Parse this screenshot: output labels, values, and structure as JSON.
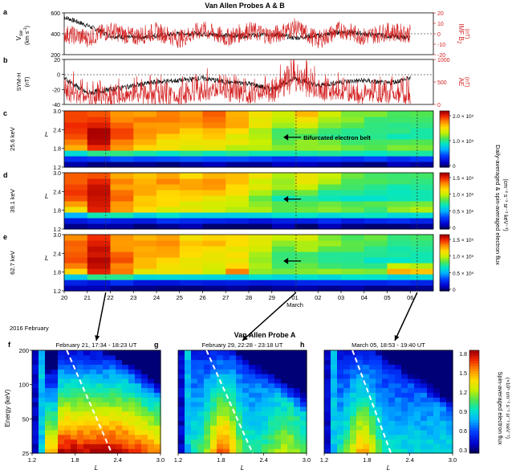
{
  "figure": {
    "title_top": "Van Allen Probes A & B",
    "title_bottom": "Van Allen Probe A",
    "x_date_ticks": [
      "20",
      "21",
      "22",
      "23",
      "24",
      "25",
      "26",
      "27",
      "28",
      "29",
      "01",
      "02",
      "03",
      "04",
      "05",
      "06"
    ],
    "x_date_sub_left": "2016 February",
    "x_date_sub_march": "March"
  },
  "panel_a": {
    "letter": "a",
    "left_label_1": "V",
    "left_label_sub": "sw",
    "left_label_2": "(km s",
    "left_label_sup": "-1",
    "left_label_3": ")",
    "left_ticks": [
      "600",
      "400",
      "200"
    ],
    "right_label_1": "IMF B",
    "right_label_sub": "Z",
    "right_label_2": "(nT)",
    "right_ticks": [
      "20",
      "10",
      "0",
      "-10",
      "-20"
    ],
    "right_color": "#d42020"
  },
  "panel_b": {
    "letter": "b",
    "left_label_1": "SYM-H",
    "left_label_2": "(nT)",
    "left_ticks": [
      "20",
      "0",
      "-20",
      "-40"
    ],
    "right_label_1": "AE",
    "right_label_2": "(nT)",
    "right_ticks": [
      "1000",
      "500",
      "0"
    ],
    "right_color": "#d42020"
  },
  "heatmaps": [
    {
      "letter": "c",
      "energy": "25.6 keV",
      "cbar_ticks": [
        "2.0 × 10⁵",
        "1.0 × 10⁵",
        "0"
      ],
      "annotation": "Bifurcated electron belt"
    },
    {
      "letter": "d",
      "energy": "39.1 keV",
      "cbar_ticks": [
        "1.5 × 10⁵",
        "1.0 × 10⁵",
        "0.5 × 10⁵",
        "0"
      ],
      "annotation": ""
    },
    {
      "letter": "e",
      "energy": "62.7 keV",
      "cbar_ticks": [
        "1.5 × 10⁵",
        "1.0 × 10⁵",
        "0.5 × 10⁵",
        "0"
      ],
      "annotation": ""
    }
  ],
  "heatmap_common": {
    "y_label": "L",
    "y_ticks": [
      "3.0",
      "2.4",
      "1.8",
      "1.2"
    ],
    "cbar_label_1": "Daily-averaged & spin-averaged electron flux",
    "cbar_label_2": "(cm⁻² s⁻¹ sr⁻¹ keV⁻¹)"
  },
  "spectra": [
    {
      "letter": "f",
      "subtitle": "February 21, 17:34 - 18:23 UT"
    },
    {
      "letter": "g",
      "subtitle": "February 29, 22:28 - 23:18 UT"
    },
    {
      "letter": "h",
      "subtitle": "March 05, 18:53 - 19:40 UT"
    }
  ],
  "spectra_common": {
    "y_label": "Energy (keV)",
    "y_ticks": [
      "200",
      "100",
      "50",
      "25"
    ],
    "x_label": "L",
    "x_ticks": [
      "1.2",
      "1.8",
      "2.4",
      "3.0"
    ],
    "cbar_ticks": [
      "1.8",
      "1.5",
      "1.2",
      "0.9",
      "0.6",
      "0.3"
    ],
    "cbar_label_1": "Spin-averaged electron flux",
    "cbar_label_2": "(×10⁵ cm⁻² s⁻¹ sr⁻¹ keV⁻¹)"
  },
  "chart_data": [
    {
      "type": "line",
      "panel": "a",
      "x_range_days": [
        "2016-02-20",
        "2016-03-06"
      ],
      "left_axis": {
        "quantity": "Vsw",
        "ylim": [
          200,
          600
        ]
      },
      "right_axis": {
        "quantity": "IMF Bz",
        "ylim": [
          -20,
          20
        ]
      },
      "series": [
        {
          "name": "Vsw",
          "axis": "left",
          "x": [
            "2016-02-20",
            "2016-02-21",
            "2016-02-22",
            "2016-02-23",
            "2016-02-24",
            "2016-02-25",
            "2016-02-26",
            "2016-02-27",
            "2016-02-28",
            "2016-02-29",
            "2016-03-01",
            "2016-03-02",
            "2016-03-03",
            "2016-03-04",
            "2016-03-05",
            "2016-03-06"
          ],
          "y": [
            560,
            480,
            380,
            360,
            380,
            400,
            400,
            380,
            380,
            400,
            360,
            380,
            420,
            400,
            380,
            360
          ]
        },
        {
          "name": "IMF Bz",
          "axis": "right",
          "x": [
            "2016-02-20",
            "2016-02-21",
            "2016-02-22",
            "2016-02-23",
            "2016-02-24",
            "2016-02-25",
            "2016-02-26",
            "2016-02-27",
            "2016-02-28",
            "2016-02-29",
            "2016-03-01",
            "2016-03-02",
            "2016-03-03",
            "2016-03-04",
            "2016-03-05",
            "2016-03-06"
          ],
          "y": [
            0,
            -4,
            3,
            -3,
            2,
            -5,
            4,
            -4,
            3,
            -2,
            6,
            -6,
            4,
            -3,
            2,
            0
          ]
        }
      ],
      "reference_lines": {
        "left": [
          400
        ],
        "right": [
          0
        ]
      }
    },
    {
      "type": "line",
      "panel": "b",
      "x_range_days": [
        "2016-02-20",
        "2016-03-06"
      ],
      "left_axis": {
        "quantity": "SYM-H",
        "ylim": [
          -40,
          20
        ]
      },
      "right_axis": {
        "quantity": "AE",
        "ylim": [
          0,
          1000
        ]
      },
      "series": [
        {
          "name": "SYM-H",
          "axis": "left",
          "x": [
            "2016-02-20",
            "2016-02-21",
            "2016-02-22",
            "2016-02-23",
            "2016-02-24",
            "2016-02-25",
            "2016-02-26",
            "2016-02-27",
            "2016-02-28",
            "2016-02-29",
            "2016-03-01",
            "2016-03-02",
            "2016-03-03",
            "2016-03-04",
            "2016-03-05",
            "2016-03-06"
          ],
          "y": [
            -5,
            -25,
            -20,
            -15,
            -10,
            -8,
            -5,
            -10,
            -12,
            -20,
            -5,
            -15,
            -10,
            -8,
            -12,
            -5
          ]
        },
        {
          "name": "AE",
          "axis": "right",
          "x": [
            "2016-02-20",
            "2016-02-21",
            "2016-02-22",
            "2016-02-23",
            "2016-02-24",
            "2016-02-25",
            "2016-02-26",
            "2016-02-27",
            "2016-02-28",
            "2016-02-29",
            "2016-03-01",
            "2016-03-02",
            "2016-03-03",
            "2016-03-04",
            "2016-03-05",
            "2016-03-06"
          ],
          "y": [
            300,
            200,
            150,
            250,
            200,
            200,
            300,
            300,
            250,
            250,
            600,
            300,
            300,
            200,
            250,
            200
          ]
        }
      ],
      "reference_lines": {
        "left": [
          0
        ]
      }
    },
    {
      "type": "heatmap",
      "panel": "c",
      "x_days": [
        "2016-02-20",
        "2016-02-21",
        "2016-02-22",
        "2016-02-23",
        "2016-02-24",
        "2016-02-25",
        "2016-02-26",
        "2016-02-27",
        "2016-02-28",
        "2016-02-29",
        "2016-03-01",
        "2016-03-02",
        "2016-03-03",
        "2016-03-04",
        "2016-03-05",
        "2016-03-06"
      ],
      "L_bands": [
        1.2,
        1.4,
        1.6,
        1.8,
        2.0,
        2.2,
        2.4,
        2.6,
        2.8,
        3.0
      ],
      "ylim": [
        1.2,
        3.0
      ],
      "zlim": [
        0,
        220000.0
      ],
      "z_normalized_rows_by_day": [
        [
          0.05,
          0.15,
          0.4,
          0.78,
          0.85,
          0.9,
          0.92,
          0.92,
          0.9,
          0.88
        ],
        [
          0.05,
          0.2,
          0.5,
          0.92,
          0.98,
          0.98,
          0.98,
          0.95,
          0.92,
          0.9
        ],
        [
          0.05,
          0.2,
          0.5,
          0.8,
          0.85,
          0.88,
          0.88,
          0.86,
          0.85,
          0.82
        ],
        [
          0.05,
          0.2,
          0.45,
          0.7,
          0.75,
          0.78,
          0.8,
          0.82,
          0.82,
          0.8
        ],
        [
          0.05,
          0.2,
          0.45,
          0.68,
          0.72,
          0.75,
          0.78,
          0.82,
          0.84,
          0.82
        ],
        [
          0.05,
          0.2,
          0.45,
          0.66,
          0.7,
          0.72,
          0.74,
          0.78,
          0.8,
          0.78
        ],
        [
          0.05,
          0.2,
          0.45,
          0.64,
          0.68,
          0.72,
          0.76,
          0.82,
          0.86,
          0.84
        ],
        [
          0.05,
          0.2,
          0.45,
          0.62,
          0.66,
          0.68,
          0.72,
          0.76,
          0.78,
          0.76
        ],
        [
          0.05,
          0.2,
          0.45,
          0.6,
          0.62,
          0.6,
          0.62,
          0.66,
          0.7,
          0.72
        ],
        [
          0.05,
          0.2,
          0.45,
          0.58,
          0.55,
          0.48,
          0.52,
          0.58,
          0.62,
          0.66
        ],
        [
          0.05,
          0.2,
          0.45,
          0.58,
          0.56,
          0.5,
          0.55,
          0.65,
          0.72,
          0.74
        ],
        [
          0.05,
          0.2,
          0.45,
          0.56,
          0.54,
          0.48,
          0.5,
          0.56,
          0.6,
          0.62
        ],
        [
          0.05,
          0.2,
          0.45,
          0.55,
          0.52,
          0.46,
          0.48,
          0.52,
          0.55,
          0.56
        ],
        [
          0.05,
          0.2,
          0.45,
          0.55,
          0.52,
          0.45,
          0.46,
          0.5,
          0.52,
          0.54
        ],
        [
          0.05,
          0.2,
          0.45,
          0.55,
          0.52,
          0.45,
          0.45,
          0.48,
          0.5,
          0.52
        ]
      ]
    },
    {
      "type": "heatmap",
      "panel": "d",
      "x_days": [
        "2016-02-20",
        "2016-02-21",
        "2016-02-22",
        "2016-02-23",
        "2016-02-24",
        "2016-02-25",
        "2016-02-26",
        "2016-02-27",
        "2016-02-28",
        "2016-02-29",
        "2016-03-01",
        "2016-03-02",
        "2016-03-03",
        "2016-03-04",
        "2016-03-05",
        "2016-03-06"
      ],
      "L_bands": [
        1.2,
        1.4,
        1.6,
        1.8,
        2.0,
        2.2,
        2.4,
        2.6,
        2.8,
        3.0
      ],
      "ylim": [
        1.2,
        3.0
      ],
      "zlim": [
        0,
        180000.0
      ],
      "z_normalized_rows_by_day": [
        [
          0.04,
          0.12,
          0.35,
          0.72,
          0.82,
          0.88,
          0.9,
          0.9,
          0.88,
          0.86
        ],
        [
          0.04,
          0.15,
          0.45,
          0.92,
          0.98,
          0.98,
          0.96,
          0.94,
          0.92,
          0.9
        ],
        [
          0.04,
          0.15,
          0.45,
          0.78,
          0.82,
          0.84,
          0.84,
          0.82,
          0.8,
          0.78
        ],
        [
          0.04,
          0.15,
          0.4,
          0.68,
          0.72,
          0.74,
          0.76,
          0.78,
          0.78,
          0.76
        ],
        [
          0.04,
          0.15,
          0.4,
          0.66,
          0.7,
          0.72,
          0.75,
          0.78,
          0.8,
          0.78
        ],
        [
          0.04,
          0.15,
          0.4,
          0.64,
          0.68,
          0.7,
          0.72,
          0.8,
          0.78,
          0.74
        ],
        [
          0.04,
          0.15,
          0.4,
          0.62,
          0.66,
          0.7,
          0.74,
          0.78,
          0.8,
          0.78
        ],
        [
          0.04,
          0.15,
          0.4,
          0.62,
          0.64,
          0.66,
          0.7,
          0.74,
          0.76,
          0.74
        ],
        [
          0.04,
          0.15,
          0.4,
          0.58,
          0.58,
          0.56,
          0.6,
          0.64,
          0.66,
          0.68
        ],
        [
          0.04,
          0.15,
          0.4,
          0.55,
          0.52,
          0.46,
          0.5,
          0.56,
          0.6,
          0.62
        ],
        [
          0.04,
          0.15,
          0.4,
          0.56,
          0.54,
          0.48,
          0.52,
          0.6,
          0.66,
          0.68
        ],
        [
          0.04,
          0.15,
          0.4,
          0.54,
          0.52,
          0.46,
          0.48,
          0.54,
          0.58,
          0.6
        ],
        [
          0.04,
          0.15,
          0.4,
          0.53,
          0.5,
          0.44,
          0.46,
          0.5,
          0.53,
          0.54
        ],
        [
          0.04,
          0.15,
          0.4,
          0.52,
          0.5,
          0.43,
          0.44,
          0.48,
          0.5,
          0.52
        ],
        [
          0.04,
          0.15,
          0.4,
          0.6,
          0.55,
          0.44,
          0.44,
          0.46,
          0.48,
          0.5
        ]
      ]
    },
    {
      "type": "heatmap",
      "panel": "e",
      "x_days": [
        "2016-02-20",
        "2016-02-21",
        "2016-02-22",
        "2016-02-23",
        "2016-02-24",
        "2016-02-25",
        "2016-02-26",
        "2016-02-27",
        "2016-02-28",
        "2016-02-29",
        "2016-03-01",
        "2016-03-02",
        "2016-03-03",
        "2016-03-04",
        "2016-03-05",
        "2016-03-06"
      ],
      "L_bands": [
        1.2,
        1.4,
        1.6,
        1.8,
        2.0,
        2.2,
        2.4,
        2.6,
        2.8,
        3.0
      ],
      "ylim": [
        1.2,
        3.0
      ],
      "zlim": [
        0,
        170000.0
      ],
      "z_normalized_rows_by_day": [
        [
          0.04,
          0.12,
          0.35,
          0.75,
          0.85,
          0.88,
          0.9,
          0.88,
          0.86,
          0.84
        ],
        [
          0.04,
          0.15,
          0.45,
          0.95,
          0.98,
          0.98,
          0.96,
          0.94,
          0.92,
          0.9
        ],
        [
          0.04,
          0.15,
          0.45,
          0.82,
          0.84,
          0.86,
          0.84,
          0.82,
          0.8,
          0.78
        ],
        [
          0.04,
          0.15,
          0.4,
          0.7,
          0.74,
          0.76,
          0.78,
          0.78,
          0.78,
          0.76
        ],
        [
          0.04,
          0.15,
          0.4,
          0.68,
          0.72,
          0.74,
          0.76,
          0.78,
          0.8,
          0.78
        ],
        [
          0.04,
          0.15,
          0.4,
          0.66,
          0.68,
          0.7,
          0.72,
          0.74,
          0.74,
          0.72
        ],
        [
          0.04,
          0.15,
          0.4,
          0.64,
          0.66,
          0.68,
          0.7,
          0.72,
          0.74,
          0.72
        ],
        [
          0.04,
          0.15,
          0.4,
          0.82,
          0.7,
          0.66,
          0.68,
          0.7,
          0.72,
          0.7
        ],
        [
          0.04,
          0.15,
          0.4,
          0.6,
          0.6,
          0.56,
          0.58,
          0.62,
          0.64,
          0.66
        ],
        [
          0.04,
          0.15,
          0.4,
          0.56,
          0.52,
          0.46,
          0.5,
          0.54,
          0.58,
          0.6
        ],
        [
          0.04,
          0.15,
          0.4,
          0.58,
          0.55,
          0.48,
          0.52,
          0.58,
          0.62,
          0.64
        ],
        [
          0.04,
          0.15,
          0.4,
          0.56,
          0.52,
          0.46,
          0.48,
          0.52,
          0.56,
          0.58
        ],
        [
          0.04,
          0.15,
          0.4,
          0.54,
          0.5,
          0.44,
          0.46,
          0.5,
          0.52,
          0.54
        ],
        [
          0.04,
          0.15,
          0.4,
          0.53,
          0.5,
          0.43,
          0.44,
          0.47,
          0.5,
          0.52
        ],
        [
          0.04,
          0.15,
          0.4,
          0.75,
          0.6,
          0.44,
          0.44,
          0.46,
          0.48,
          0.5
        ]
      ]
    },
    {
      "type": "heatmap",
      "panel": "f",
      "x_label": "L",
      "xlim": [
        1.2,
        3.0
      ],
      "y_label": "Energy (keV)",
      "ylim": [
        25,
        200
      ],
      "y_scale": "log",
      "zlim": [
        0.3,
        1.8
      ],
      "note": "flux increases toward low energy and L between 1.6 and 2.6"
    },
    {
      "type": "heatmap",
      "panel": "g",
      "x_label": "L",
      "xlim": [
        1.2,
        3.0
      ],
      "y_label": "Energy (keV)",
      "ylim": [
        25,
        200
      ],
      "y_scale": "log",
      "zlim": [
        0.3,
        1.8
      ]
    },
    {
      "type": "heatmap",
      "panel": "h",
      "x_label": "L",
      "xlim": [
        1.2,
        3.0
      ],
      "y_label": "Energy (keV)",
      "ylim": [
        25,
        200
      ],
      "y_scale": "log",
      "zlim": [
        0.3,
        1.8
      ]
    }
  ]
}
